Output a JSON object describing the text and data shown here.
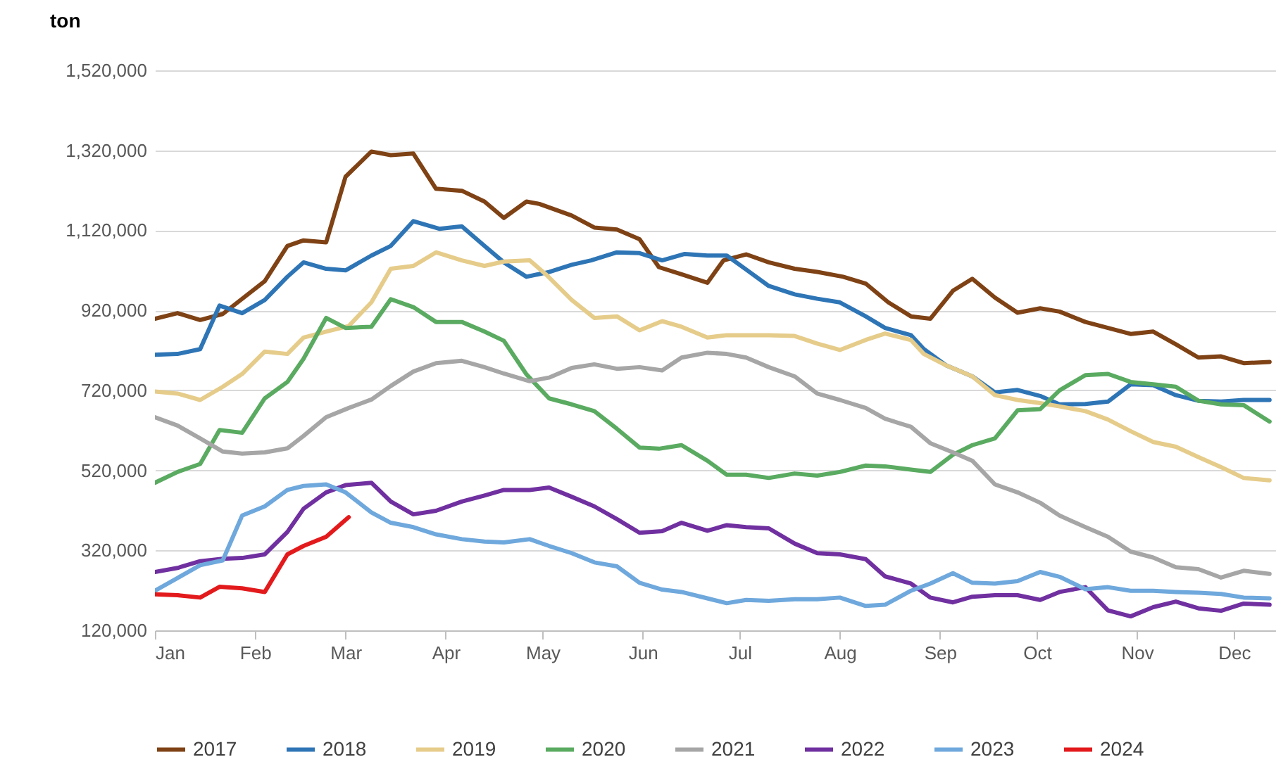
{
  "chart_data": {
    "type": "line",
    "ylabel": "ton",
    "xlim": [
      "--01-01",
      "--12-14"
    ],
    "xticks": [
      {
        "value": "--01-01",
        "label": "Jan"
      },
      {
        "value": "--02-01",
        "label": "Feb"
      },
      {
        "value": "--03-01",
        "label": "Mar"
      },
      {
        "value": "--04-01",
        "label": "Apr"
      },
      {
        "value": "--05-01",
        "label": "May"
      },
      {
        "value": "--06-01",
        "label": "Jun"
      },
      {
        "value": "--07-01",
        "label": "Jul"
      },
      {
        "value": "--08-01",
        "label": "Aug"
      },
      {
        "value": "--09-01",
        "label": "Sep"
      },
      {
        "value": "--10-01",
        "label": "Oct"
      },
      {
        "value": "--11-01",
        "label": "Nov"
      },
      {
        "value": "--12-01",
        "label": "Dec"
      }
    ],
    "ylim": [
      120000,
      1520000
    ],
    "yticks": [
      {
        "value": 120000,
        "label": "120,000"
      },
      {
        "value": 320000,
        "label": "320,000"
      },
      {
        "value": 520000,
        "label": "520,000"
      },
      {
        "value": 720000,
        "label": "720,000"
      },
      {
        "value": 920000,
        "label": "920,000"
      },
      {
        "value": 1120000,
        "label": "1,120,000"
      },
      {
        "value": 1320000,
        "label": "1,320,000"
      },
      {
        "value": 1520000,
        "label": "1,520,000"
      }
    ],
    "grid": "y",
    "legend": "bottom",
    "line_style": "solid",
    "series": [
      {
        "name": "2017",
        "color": "#7f4215",
        "x": [
          "--01-01",
          "--01-08",
          "--01-15",
          "--01-22",
          "--02-04",
          "--02-11",
          "--02-16",
          "--02-23",
          "--03-01",
          "--03-09",
          "--03-15",
          "--03-22",
          "--03-29",
          "--04-06",
          "--04-13",
          "--04-19",
          "--04-26",
          "--04-30",
          "--05-10",
          "--05-17",
          "--05-24",
          "--05-31",
          "--06-06",
          "--06-13",
          "--06-21",
          "--06-26",
          "--07-03",
          "--07-10",
          "--07-18",
          "--07-25",
          "--08-02",
          "--08-09",
          "--08-16",
          "--08-23",
          "--08-29",
          "--09-05",
          "--09-11",
          "--09-18",
          "--09-25",
          "--10-02",
          "--10-08",
          "--10-16",
          "--10-23",
          "--10-30",
          "--11-06",
          "--11-13",
          "--11-20",
          "--11-27",
          "--12-04",
          "--12-12"
        ],
        "values": [
          899000,
          913000,
          896000,
          911000,
          993000,
          1081000,
          1095000,
          1090000,
          1254000,
          1317000,
          1308000,
          1312000,
          1224000,
          1219000,
          1192000,
          1151000,
          1192000,
          1186000,
          1157000,
          1127000,
          1122000,
          1098000,
          1028000,
          1010000,
          989000,
          1045000,
          1060000,
          1040000,
          1024000,
          1016000,
          1004000,
          987000,
          940000,
          905000,
          899000,
          969000,
          999000,
          952000,
          914000,
          925000,
          917000,
          891000,
          876000,
          861000,
          867000,
          835000,
          802000,
          805000,
          788000,
          791000
        ]
      },
      {
        "name": "2018",
        "color": "#2e75b6",
        "x": [
          "--01-01",
          "--01-08",
          "--01-15",
          "--01-21",
          "--01-28",
          "--02-04",
          "--02-11",
          "--02-16",
          "--02-23",
          "--03-01",
          "--03-09",
          "--03-15",
          "--03-22",
          "--03-30",
          "--04-06",
          "--04-13",
          "--04-19",
          "--04-26",
          "--05-03",
          "--05-10",
          "--05-16",
          "--05-24",
          "--05-31",
          "--06-07",
          "--06-14",
          "--06-21",
          "--06-27",
          "--07-03",
          "--07-10",
          "--07-18",
          "--07-25",
          "--08-01",
          "--08-09",
          "--08-15",
          "--08-23",
          "--08-27",
          "--09-03",
          "--09-11",
          "--09-18",
          "--09-25",
          "--10-02",
          "--10-08",
          "--10-16",
          "--10-23",
          "--10-30",
          "--11-06",
          "--11-13",
          "--11-20",
          "--11-27",
          "--12-04",
          "--12-12"
        ],
        "values": [
          809000,
          811000,
          823000,
          932000,
          913000,
          946000,
          1004000,
          1040000,
          1024000,
          1020000,
          1057000,
          1081000,
          1143000,
          1124000,
          1130000,
          1081000,
          1040000,
          1004000,
          1016000,
          1034000,
          1045000,
          1065000,
          1063000,
          1045000,
          1061000,
          1057000,
          1057000,
          1022000,
          981000,
          960000,
          949000,
          940000,
          905000,
          876000,
          858000,
          823000,
          782000,
          755000,
          715000,
          721000,
          706000,
          685000,
          686000,
          692000,
          735000,
          733000,
          708000,
          694000,
          692000,
          696000,
          696000
        ]
      },
      {
        "name": "2019",
        "color": "#e6cc8a",
        "x": [
          "--01-01",
          "--01-08",
          "--01-15",
          "--01-22",
          "--01-28",
          "--02-04",
          "--02-11",
          "--02-16",
          "--02-23",
          "--03-02",
          "--03-09",
          "--03-15",
          "--03-22",
          "--03-29",
          "--04-06",
          "--04-13",
          "--04-19",
          "--04-27",
          "--05-02",
          "--05-10",
          "--05-17",
          "--05-24",
          "--05-31",
          "--06-07",
          "--06-13",
          "--06-21",
          "--06-27",
          "--07-03",
          "--07-10",
          "--07-18",
          "--07-25",
          "--08-01",
          "--08-09",
          "--08-15",
          "--08-23",
          "--08-27",
          "--09-03",
          "--09-11",
          "--09-18",
          "--09-25",
          "--10-02",
          "--10-08",
          "--10-16",
          "--10-23",
          "--10-30",
          "--11-06",
          "--11-13",
          "--11-20",
          "--11-27",
          "--12-04",
          "--12-12"
        ],
        "values": [
          717000,
          712000,
          696000,
          729000,
          761000,
          817000,
          811000,
          852000,
          867000,
          881000,
          940000,
          1024000,
          1031000,
          1065000,
          1045000,
          1031000,
          1042000,
          1045000,
          1010000,
          946000,
          901000,
          905000,
          870000,
          893000,
          879000,
          852000,
          858000,
          858000,
          858000,
          856000,
          837000,
          821000,
          846000,
          862000,
          846000,
          811000,
          782000,
          755000,
          708000,
          696000,
          688000,
          680000,
          668000,
          647000,
          618000,
          591000,
          579000,
          553000,
          528000,
          501000,
          495000
        ]
      },
      {
        "name": "2020",
        "color": "#5aab61",
        "x": [
          "--01-01",
          "--01-08",
          "--01-15",
          "--01-21",
          "--01-28",
          "--02-04",
          "--02-11",
          "--02-16",
          "--02-23",
          "--03-01",
          "--03-09",
          "--03-15",
          "--03-22",
          "--03-29",
          "--04-06",
          "--04-13",
          "--04-19",
          "--04-26",
          "--05-03",
          "--05-10",
          "--05-17",
          "--05-24",
          "--05-31",
          "--06-06",
          "--06-13",
          "--06-21",
          "--06-27",
          "--07-03",
          "--07-10",
          "--07-18",
          "--07-25",
          "--08-01",
          "--08-09",
          "--08-15",
          "--08-23",
          "--08-29",
          "--09-05",
          "--09-11",
          "--09-18",
          "--09-25",
          "--10-02",
          "--10-08",
          "--10-16",
          "--10-23",
          "--10-30",
          "--11-06",
          "--11-13",
          "--11-20",
          "--11-27",
          "--12-04",
          "--12-12"
        ],
        "values": [
          489000,
          516000,
          536000,
          621000,
          614000,
          700000,
          741000,
          799000,
          901000,
          876000,
          879000,
          948000,
          928000,
          891000,
          891000,
          867000,
          844000,
          760000,
          700000,
          685000,
          668000,
          624000,
          577000,
          574000,
          583000,
          544000,
          509000,
          509000,
          501000,
          512000,
          507000,
          516000,
          532000,
          530000,
          522000,
          516000,
          559000,
          583000,
          600000,
          670000,
          673000,
          720000,
          758000,
          761000,
          741000,
          735000,
          729000,
          694000,
          685000,
          683000,
          642000
        ]
      },
      {
        "name": "2021",
        "color": "#a6a6a6",
        "x": [
          "--01-01",
          "--01-08",
          "--01-15",
          "--01-22",
          "--01-28",
          "--02-04",
          "--02-11",
          "--02-16",
          "--02-23",
          "--03-02",
          "--03-09",
          "--03-15",
          "--03-22",
          "--03-29",
          "--04-06",
          "--04-13",
          "--04-19",
          "--04-27",
          "--05-03",
          "--05-10",
          "--05-17",
          "--05-24",
          "--05-31",
          "--06-07",
          "--06-13",
          "--06-21",
          "--06-27",
          "--07-03",
          "--07-10",
          "--07-18",
          "--07-25",
          "--08-01",
          "--08-09",
          "--08-15",
          "--08-23",
          "--08-29",
          "--09-05",
          "--09-11",
          "--09-18",
          "--09-25",
          "--10-02",
          "--10-08",
          "--10-16",
          "--10-23",
          "--10-30",
          "--11-06",
          "--11-13",
          "--11-20",
          "--11-27",
          "--12-04",
          "--12-12"
        ],
        "values": [
          653000,
          632000,
          600000,
          567000,
          562000,
          565000,
          575000,
          606000,
          653000,
          676000,
          697000,
          731000,
          767000,
          788000,
          794000,
          778000,
          762000,
          743000,
          752000,
          776000,
          785000,
          774000,
          778000,
          770000,
          802000,
          814000,
          811000,
          802000,
          778000,
          755000,
          712000,
          696000,
          676000,
          649000,
          629000,
          588000,
          565000,
          544000,
          485000,
          465000,
          439000,
          407000,
          378000,
          354000,
          317000,
          302000,
          278000,
          273000,
          252000,
          269000,
          261000
        ]
      },
      {
        "name": "2022",
        "color": "#7030a0",
        "x": [
          "--01-01",
          "--01-08",
          "--01-15",
          "--01-22",
          "--01-28",
          "--02-04",
          "--02-11",
          "--02-16",
          "--02-23",
          "--03-01",
          "--03-09",
          "--03-15",
          "--03-22",
          "--03-29",
          "--04-06",
          "--04-13",
          "--04-19",
          "--04-27",
          "--05-03",
          "--05-10",
          "--05-17",
          "--05-24",
          "--05-31",
          "--06-07",
          "--06-13",
          "--06-21",
          "--06-27",
          "--07-03",
          "--07-10",
          "--07-18",
          "--07-25",
          "--08-01",
          "--08-09",
          "--08-15",
          "--08-23",
          "--08-29",
          "--09-05",
          "--09-11",
          "--09-18",
          "--09-25",
          "--10-02",
          "--10-08",
          "--10-16",
          "--10-23",
          "--10-30",
          "--11-06",
          "--11-13",
          "--11-20",
          "--11-27",
          "--12-04",
          "--12-12"
        ],
        "values": [
          266000,
          276000,
          293000,
          299000,
          301000,
          310000,
          366000,
          424000,
          465000,
          483000,
          489000,
          442000,
          410000,
          419000,
          442000,
          457000,
          471000,
          471000,
          477000,
          454000,
          430000,
          398000,
          364000,
          368000,
          389000,
          369000,
          383000,
          378000,
          375000,
          337000,
          313000,
          310000,
          298000,
          255000,
          237000,
          202000,
          190000,
          204000,
          208000,
          208000,
          196000,
          216000,
          228000,
          170000,
          155000,
          178000,
          192000,
          175000,
          169000,
          187000,
          184000
        ]
      },
      {
        "name": "2023",
        "color": "#6fa8dc",
        "x": [
          "--01-01",
          "--01-08",
          "--01-15",
          "--01-22",
          "--01-28",
          "--02-04",
          "--02-11",
          "--02-16",
          "--02-23",
          "--03-01",
          "--03-09",
          "--03-15",
          "--03-22",
          "--03-29",
          "--04-06",
          "--04-13",
          "--04-19",
          "--04-27",
          "--05-03",
          "--05-10",
          "--05-17",
          "--05-24",
          "--05-31",
          "--06-07",
          "--06-13",
          "--06-21",
          "--06-27",
          "--07-03",
          "--07-10",
          "--07-18",
          "--07-25",
          "--08-01",
          "--08-09",
          "--08-15",
          "--08-23",
          "--08-29",
          "--09-05",
          "--09-11",
          "--09-18",
          "--09-25",
          "--10-02",
          "--10-08",
          "--10-16",
          "--10-23",
          "--10-30",
          "--11-06",
          "--11-13",
          "--11-20",
          "--11-27",
          "--12-04",
          "--12-12"
        ],
        "values": [
          219000,
          251000,
          283000,
          295000,
          407000,
          430000,
          471000,
          481000,
          485000,
          465000,
          415000,
          389000,
          378000,
          360000,
          348000,
          342000,
          340000,
          348000,
          331000,
          313000,
          290000,
          280000,
          239000,
          222000,
          216000,
          200000,
          188000,
          196000,
          194000,
          198000,
          198000,
          202000,
          181000,
          184000,
          219000,
          237000,
          263000,
          239000,
          237000,
          243000,
          266000,
          254000,
          223000,
          228000,
          219000,
          219000,
          216000,
          214000,
          211000,
          202000,
          200000
        ]
      },
      {
        "name": "2024",
        "color": "#e31a1c",
        "x": [
          "--01-01",
          "--01-08",
          "--01-15",
          "--01-21",
          "--01-28",
          "--02-04",
          "--02-11",
          "--02-16",
          "--02-23",
          "--03-02"
        ],
        "values": [
          210000,
          208000,
          202000,
          229000,
          225000,
          216000,
          310000,
          331000,
          354000,
          403000
        ]
      }
    ]
  }
}
